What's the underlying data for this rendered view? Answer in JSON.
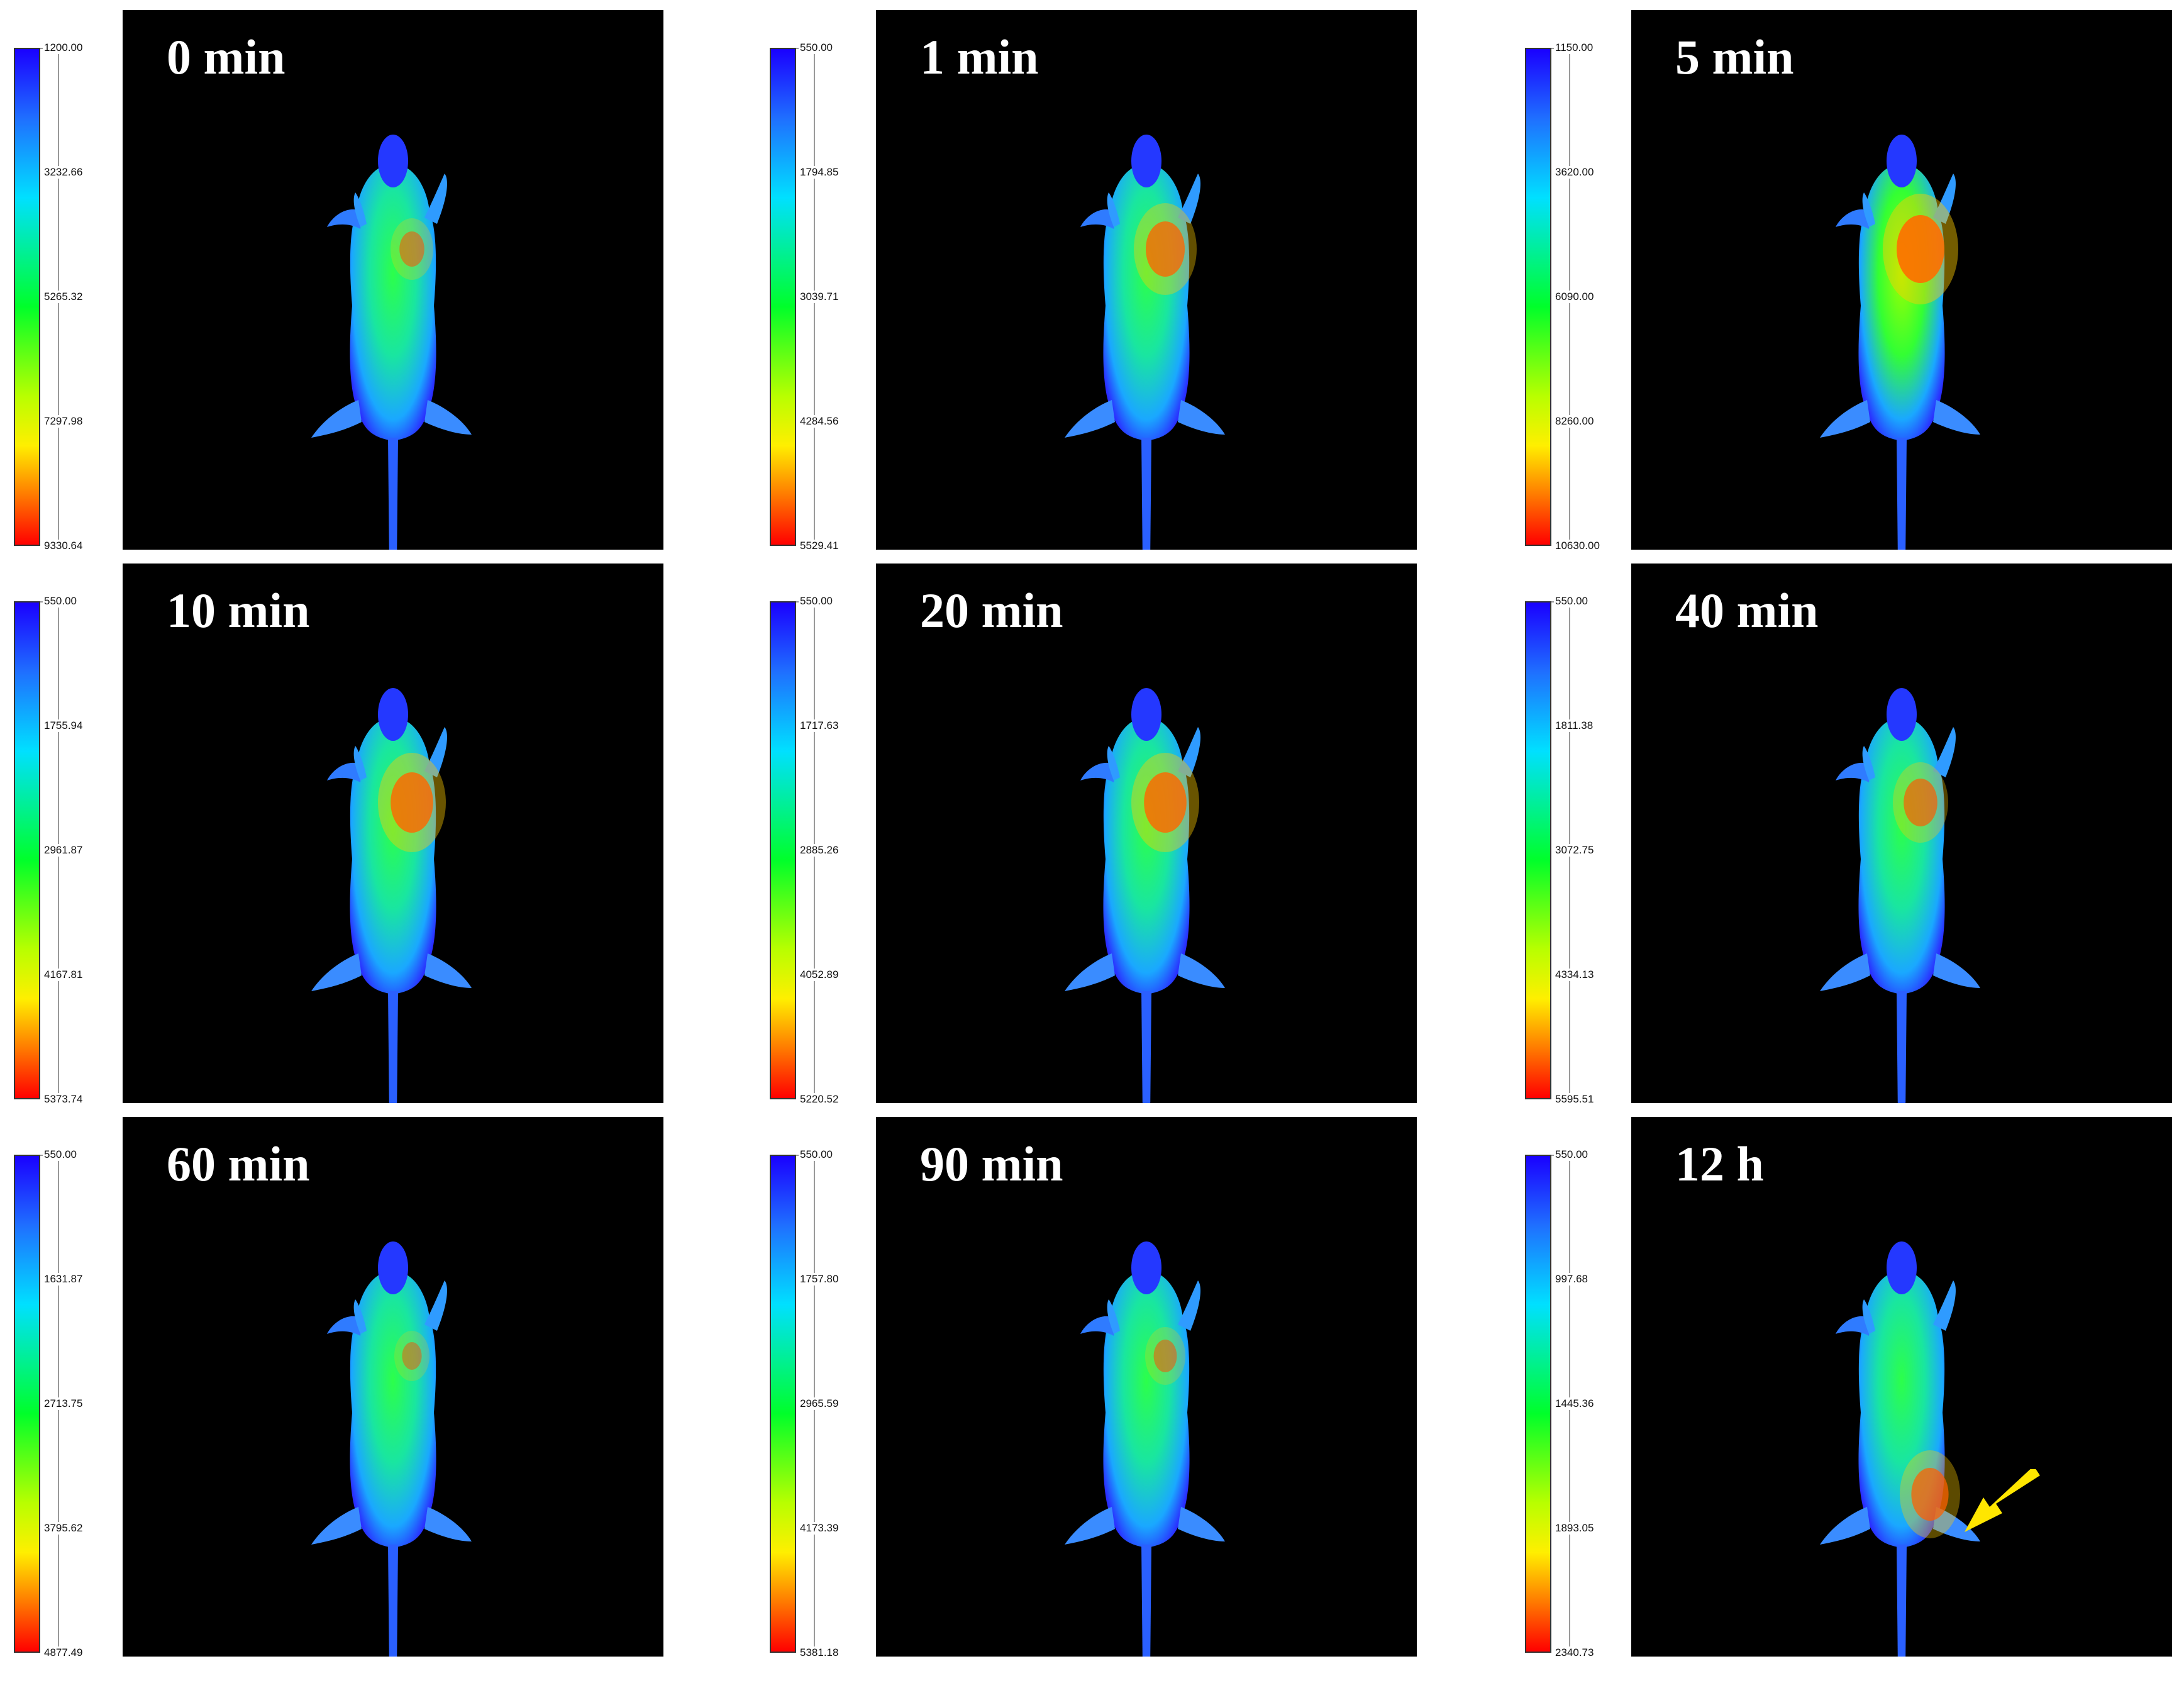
{
  "panels": [
    {
      "label": "0 min",
      "ticks": [
        "1200.00",
        "3232.66",
        "5265.32",
        "7297.98",
        "9330.64"
      ],
      "intensity": 0.25,
      "hotspot": 0.35
    },
    {
      "label": "1 min",
      "ticks": [
        "550.00",
        "1794.85",
        "3039.71",
        "4284.56",
        "5529.41"
      ],
      "intensity": 0.3,
      "hotspot": 0.75
    },
    {
      "label": "5 min",
      "ticks": [
        "1150.00",
        "3620.00",
        "6090.00",
        "8260.00",
        "10630.00"
      ],
      "intensity": 0.55,
      "hotspot": 1.0
    },
    {
      "label": "10 min",
      "ticks": [
        "550.00",
        "1755.94",
        "2961.87",
        "4167.81",
        "5373.74"
      ],
      "intensity": 0.3,
      "hotspot": 0.85
    },
    {
      "label": "20 min",
      "ticks": [
        "550.00",
        "1717.63",
        "2885.26",
        "4052.89",
        "5220.52"
      ],
      "intensity": 0.3,
      "hotspot": 0.85
    },
    {
      "label": "40 min",
      "ticks": [
        "550.00",
        "1811.38",
        "3072.75",
        "4334.13",
        "5595.51"
      ],
      "intensity": 0.22,
      "hotspot": 0.6
    },
    {
      "label": "60 min",
      "ticks": [
        "550.00",
        "1631.87",
        "2713.75",
        "3795.62",
        "4877.49"
      ],
      "intensity": 0.18,
      "hotspot": 0.2
    },
    {
      "label": "90 min",
      "ticks": [
        "550.00",
        "1757.80",
        "2965.59",
        "4173.39",
        "5381.18"
      ],
      "intensity": 0.2,
      "hotspot": 0.3
    },
    {
      "label": "12 h",
      "ticks": [
        "550.00",
        "997.68",
        "1445.36",
        "1893.05",
        "2340.73"
      ],
      "intensity": 0.3,
      "hotspot": 0.7,
      "arrow": true
    }
  ],
  "colors": {
    "arrow": "#ffe600",
    "panel_bg": "#000000"
  }
}
